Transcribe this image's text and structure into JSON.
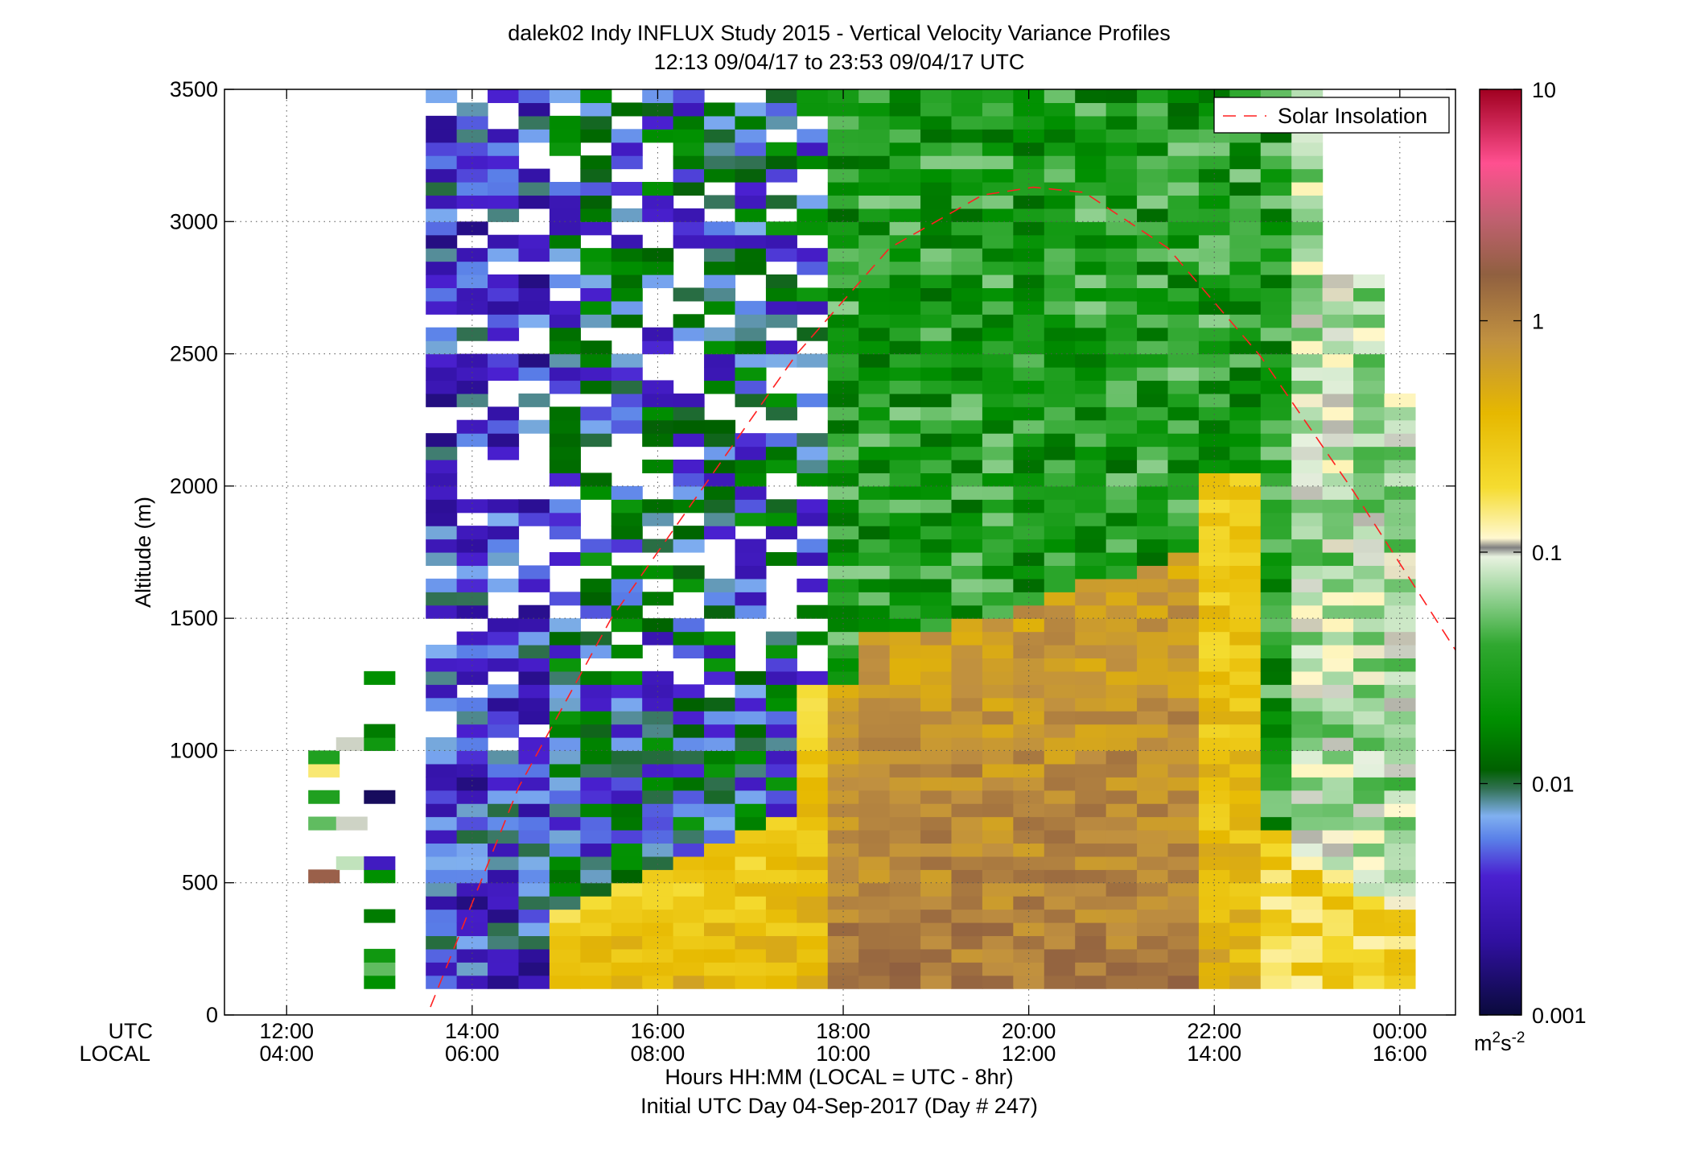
{
  "chart_data": {
    "type": "heatmap",
    "title": "dalek02 Indy INFLUX Study 2015 - Vertical Velocity Variance Profiles",
    "subtitle": "12:13 09/04/17 to 23:53 09/04/17  UTC",
    "ylabel": "Altitude (m)",
    "xlabel": "Hours HH:MM  (LOCAL = UTC - 8hr)",
    "xlabel2": "Initial UTC Day 04-Sep-2017 (Day # 247)",
    "x_row_labels": [
      "UTC",
      "LOCAL"
    ],
    "xlim_hours_utc": [
      11.33,
      24.6
    ],
    "ylim": [
      0,
      3500
    ],
    "x_ticks": [
      {
        "utc_hours": 12,
        "utc": "12:00",
        "local": "04:00"
      },
      {
        "utc_hours": 14,
        "utc": "14:00",
        "local": "06:00"
      },
      {
        "utc_hours": 16,
        "utc": "16:00",
        "local": "08:00"
      },
      {
        "utc_hours": 18,
        "utc": "18:00",
        "local": "10:00"
      },
      {
        "utc_hours": 20,
        "utc": "20:00",
        "local": "12:00"
      },
      {
        "utc_hours": 22,
        "utc": "22:00",
        "local": "14:00"
      },
      {
        "utc_hours": 24,
        "utc": "00:00",
        "local": "16:00"
      }
    ],
    "y_ticks": [
      0,
      500,
      1000,
      1500,
      2000,
      2500,
      3000,
      3500
    ],
    "grid": true,
    "legend": {
      "entries": [
        "Solar Insolation"
      ],
      "placement": "top-right"
    },
    "colorbar": {
      "scale": "log",
      "range": [
        0.001,
        10
      ],
      "ticks": [
        {
          "value": 0.001,
          "label": "0.001"
        },
        {
          "value": 0.01,
          "label": "0.01"
        },
        {
          "value": 0.1,
          "label": "0.1"
        },
        {
          "value": 1,
          "label": "1"
        },
        {
          "value": 10,
          "label": "10"
        }
      ],
      "unit_base": "m",
      "unit_sup1": "2",
      "unit_mid": "s",
      "unit_sup2": "-2"
    },
    "solar_insolation": {
      "description_color": "#ff0000",
      "x_hours_utc": [
        13.55,
        14.5,
        15.5,
        16.5,
        17.5,
        18.5,
        19.5,
        20.05,
        20.6,
        21.5,
        22.5,
        23.5,
        24.6
      ],
      "altitude_m": [
        30,
        860,
        1500,
        2000,
        2500,
        2900,
        3100,
        3130,
        3110,
        2900,
        2490,
        1980,
        1380
      ]
    },
    "variance_grid": {
      "x_start_hours_utc": 12.2,
      "x_step_hours": 0.3333,
      "y_start_m": 100,
      "y_step_m": 50,
      "note": "log10 variance per cell, approximate reading from the color map",
      "columns": [
        {
          "x": 12.4,
          "cells": [
            [
              500,
              550,
              0.25
            ],
            [
              700,
              750,
              -1.3
            ],
            [
              800,
              850,
              -1.5
            ],
            [
              900,
              950,
              -0.8
            ],
            [
              950,
              1000,
              -1.5
            ]
          ]
        },
        {
          "x": 12.7,
          "cells": [
            [
              550,
              600,
              -1.1
            ],
            [
              700,
              750,
              -1.0
            ],
            [
              1000,
              1050,
              -1.0
            ]
          ]
        },
        {
          "x": 13.0,
          "cells": [
            [
              100,
              150,
              -1.7
            ],
            [
              150,
              200,
              -1.3
            ],
            [
              200,
              250,
              -1.6
            ],
            [
              350,
              400,
              -1.8
            ],
            [
              500,
              550,
              -1.7
            ],
            [
              550,
              600,
              -2.5
            ],
            [
              800,
              850,
              -2.9
            ],
            [
              1000,
              1050,
              -1.6
            ],
            [
              1050,
              1100,
              -1.8
            ],
            [
              1250,
              1300,
              -1.7
            ]
          ]
        }
      ]
    }
  }
}
